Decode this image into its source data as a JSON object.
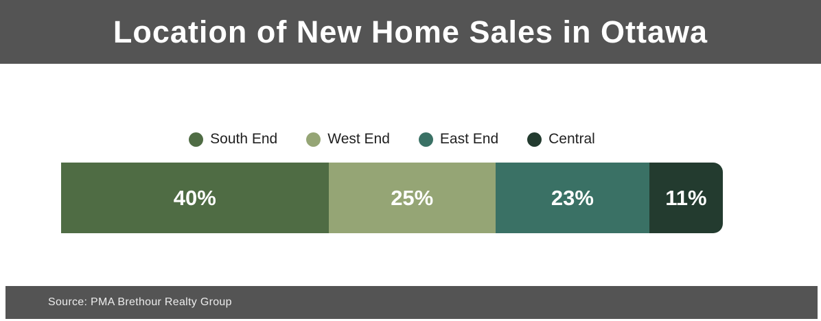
{
  "header": {
    "title": "Location of New Home Sales in Ottawa",
    "bg_color": "#545454",
    "text_color": "#ffffff"
  },
  "chart_data": {
    "type": "bar",
    "variant": "horizontal-stacked-percentage",
    "title": "Location of New Home Sales in Ottawa",
    "categories": [
      "South End",
      "West End",
      "East End",
      "Central"
    ],
    "values": [
      40,
      25,
      23,
      11
    ],
    "unit": "%",
    "labels": [
      "40%",
      "25%",
      "23%",
      "11%"
    ],
    "colors": [
      "#4f6c44",
      "#95a575",
      "#3a7165",
      "#233b2f"
    ],
    "legend_position": "top-center",
    "label_color": "#ffffff",
    "axis": "none",
    "grid": false
  },
  "legend": {
    "items": [
      {
        "label": "South End",
        "color": "#4f6c44"
      },
      {
        "label": "West End",
        "color": "#95a575"
      },
      {
        "label": "East End",
        "color": "#3a7165"
      },
      {
        "label": "Central",
        "color": "#233b2f"
      }
    ]
  },
  "footer": {
    "text": "Source: PMA Brethour Realty Group",
    "bg_color": "#545454",
    "text_color": "#ededed"
  }
}
